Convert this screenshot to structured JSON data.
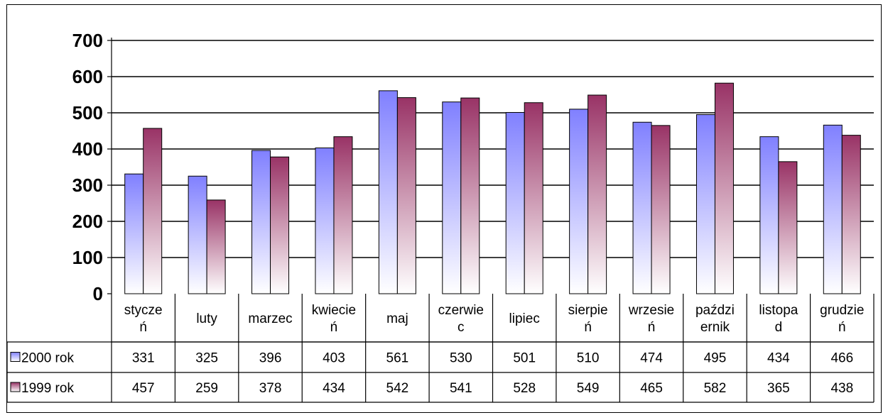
{
  "chart_data": {
    "type": "bar",
    "title": "",
    "xlabel": "",
    "ylabel": "",
    "ylim": [
      0,
      700
    ],
    "yticks": [
      "0",
      "100",
      "200",
      "300",
      "400",
      "500",
      "600",
      "700"
    ],
    "grid": true,
    "legend": "data-table",
    "categories": [
      [
        "stycze",
        "ń"
      ],
      [
        "luty"
      ],
      [
        "marzec"
      ],
      [
        "kwiecie",
        "ń"
      ],
      [
        "maj"
      ],
      [
        "czerwie",
        "c"
      ],
      [
        "lipiec"
      ],
      [
        "sierpie",
        "ń"
      ],
      [
        "wrzesie",
        "ń"
      ],
      [
        "paździ",
        "ernik"
      ],
      [
        "listopa",
        "d"
      ],
      [
        "grudzie",
        "ń"
      ]
    ],
    "series": [
      {
        "name": "2000 rok",
        "values": [
          331,
          325,
          396,
          403,
          561,
          530,
          501,
          510,
          474,
          495,
          434,
          466
        ],
        "color": "#8080ff"
      },
      {
        "name": "1999 rok",
        "values": [
          457,
          259,
          378,
          434,
          542,
          541,
          528,
          549,
          465,
          582,
          365,
          438
        ],
        "color": "#993366"
      }
    ]
  }
}
